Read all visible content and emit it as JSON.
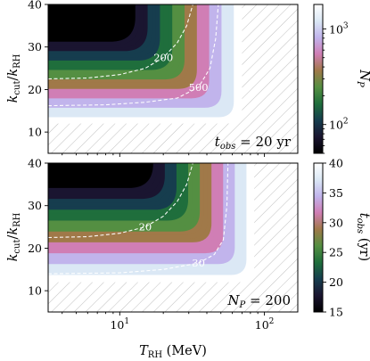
{
  "chart_data": [
    {
      "type": "heatmap",
      "panel": "top",
      "xlabel": "",
      "ylabel": "k_cut/k_RH",
      "xscale": "log",
      "xlim": [
        3.2,
        170
      ],
      "ylim": [
        5,
        40
      ],
      "yticks": [
        "10",
        "20",
        "30",
        "40"
      ],
      "xticks_shown": false,
      "colorbar": {
        "label": "N_P",
        "scale": "log",
        "range": [
          50,
          1800
        ],
        "ticks": [
          {
            "value": 100,
            "label": "10^2"
          },
          {
            "value": 1000,
            "label": "10^3"
          }
        ],
        "colormap": "cubehelix"
      },
      "contours": [
        {
          "value": 200,
          "label": "200",
          "points": [
            [
              3.2,
              22.5
            ],
            [
              6,
              22.7
            ],
            [
              10,
              23.5
            ],
            [
              15,
              25
            ],
            [
              20,
              27.5
            ],
            [
              25,
              31
            ],
            [
              29,
              35
            ],
            [
              32,
              40
            ]
          ]
        },
        {
          "value": 500,
          "label": "500",
          "points": [
            [
              3.2,
              16.2
            ],
            [
              8,
              16.4
            ],
            [
              15,
              17
            ],
            [
              25,
              18
            ],
            [
              35,
              20.5
            ],
            [
              42,
              25
            ],
            [
              46,
              32
            ],
            [
              48,
              40
            ]
          ]
        }
      ],
      "annotation": {
        "text": "t_obs = 20 yr",
        "unit_text": "yr"
      },
      "hatched_region": "no data (lower-right and bottom strip)"
    },
    {
      "type": "heatmap",
      "panel": "bottom",
      "xlabel": "T_RH (MeV)",
      "ylabel": "k_cut/k_RH",
      "xscale": "log",
      "xlim": [
        3.2,
        170
      ],
      "ylim": [
        5,
        40
      ],
      "yticks": [
        "10",
        "20",
        "30",
        "40"
      ],
      "xticks": [
        {
          "value": 10,
          "label": "10^1"
        },
        {
          "value": 100,
          "label": "10^2"
        }
      ],
      "colorbar": {
        "label": "t_obs (yr)",
        "scale": "linear",
        "range": [
          15,
          40
        ],
        "ticks": [
          15,
          20,
          25,
          30,
          35,
          40
        ],
        "colormap": "cubehelix"
      },
      "contours": [
        {
          "value": 20,
          "label": "20",
          "points": [
            [
              3.2,
              22.5
            ],
            [
              6,
              22.7
            ],
            [
              10,
              23.5
            ],
            [
              15,
              25
            ],
            [
              20,
              27.5
            ],
            [
              25,
              31
            ],
            [
              29,
              35
            ],
            [
              32,
              40
            ]
          ]
        },
        {
          "value": 30,
          "label": "30",
          "points": [
            [
              3.2,
              14
            ],
            [
              10,
              14.2
            ],
            [
              20,
              15
            ],
            [
              35,
              16.5
            ],
            [
              45,
              18.5
            ],
            [
              52,
              22
            ],
            [
              55,
              30
            ],
            [
              56,
              40
            ]
          ]
        }
      ],
      "annotation": {
        "text": "N_P = 200"
      },
      "hatched_region": "no data (lower-right and bottom strip)"
    }
  ],
  "colors": {
    "cmap_stops": [
      "#000000",
      "#1a1530",
      "#163d4e",
      "#1f6e3c",
      "#548f42",
      "#a07949",
      "#d07eb5",
      "#c1b4ec",
      "#dbe8f5",
      "#ffffff"
    ],
    "hatch": "#b0b0b0",
    "contour": "#ffffff"
  }
}
